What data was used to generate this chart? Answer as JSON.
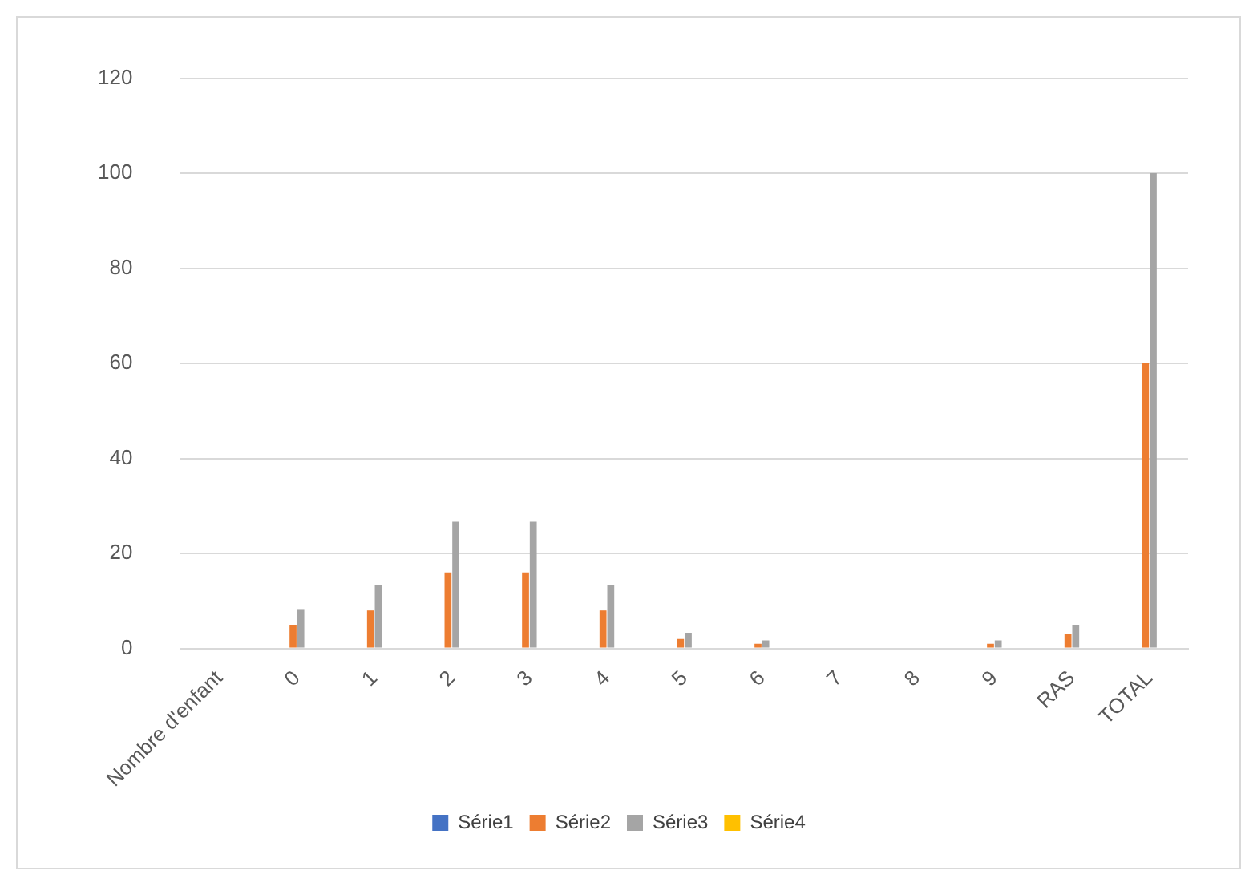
{
  "chart_data": {
    "type": "bar",
    "categories": [
      "Nombre d'enfant",
      "0",
      "1",
      "2",
      "3",
      "4",
      "5",
      "6",
      "7",
      "8",
      "9",
      "RAS",
      "TOTAL"
    ],
    "series": [
      {
        "name": "Série1",
        "color": "#4472c4",
        "values": [
          null,
          null,
          null,
          null,
          null,
          null,
          null,
          null,
          null,
          null,
          null,
          null,
          null
        ]
      },
      {
        "name": "Série2",
        "color": "#ed7d31",
        "values": [
          null,
          5,
          8,
          16,
          16,
          8,
          2,
          1,
          0,
          0,
          1,
          3,
          60
        ]
      },
      {
        "name": "Série3",
        "color": "#a5a5a5",
        "values": [
          null,
          8.3,
          13.3,
          26.7,
          26.7,
          13.3,
          3.3,
          1.7,
          0,
          0,
          1.7,
          5,
          100
        ]
      },
      {
        "name": "Série4",
        "color": "#ffc000",
        "values": [
          null,
          null,
          null,
          null,
          null,
          null,
          null,
          null,
          null,
          null,
          null,
          null,
          null
        ]
      }
    ],
    "ylim": [
      0,
      120
    ],
    "yticks": [
      0,
      20,
      40,
      60,
      80,
      100,
      120
    ],
    "grid": "y",
    "legend": "bottom"
  }
}
